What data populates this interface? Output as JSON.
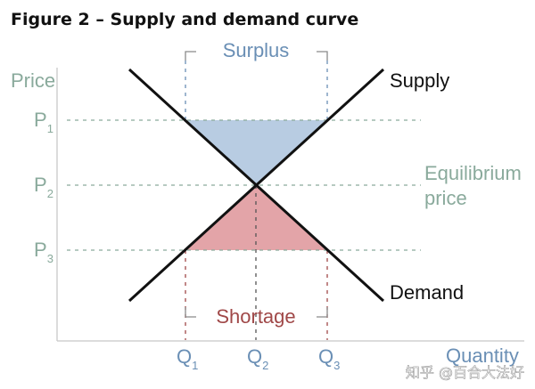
{
  "title": "Figure 2 – Supply and demand curve",
  "axes": {
    "y_label": "Price",
    "x_label": "Quantity"
  },
  "price_ticks": [
    {
      "letter": "P",
      "sub": "1"
    },
    {
      "letter": "P",
      "sub": "2"
    },
    {
      "letter": "P",
      "sub": "3"
    }
  ],
  "quantity_ticks": [
    {
      "letter": "Q",
      "sub": "1"
    },
    {
      "letter": "Q",
      "sub": "2"
    },
    {
      "letter": "Q",
      "sub": "3"
    }
  ],
  "curves": {
    "supply": "Supply",
    "demand": "Demand"
  },
  "regions": {
    "surplus": "Surplus",
    "shortage": "Shortage"
  },
  "equilibrium": {
    "line1": "Equilibrium",
    "line2": "price"
  },
  "watermark": "知乎 @百合大法好",
  "colors": {
    "surplus_fill": "#b8cce2",
    "surplus_text": "#6a8fb5",
    "shortage_fill": "#e3a4a8",
    "shortage_text": "#a04848",
    "axis_text": "#8aaa9c",
    "curve": "#111111",
    "title": "#111111"
  }
}
